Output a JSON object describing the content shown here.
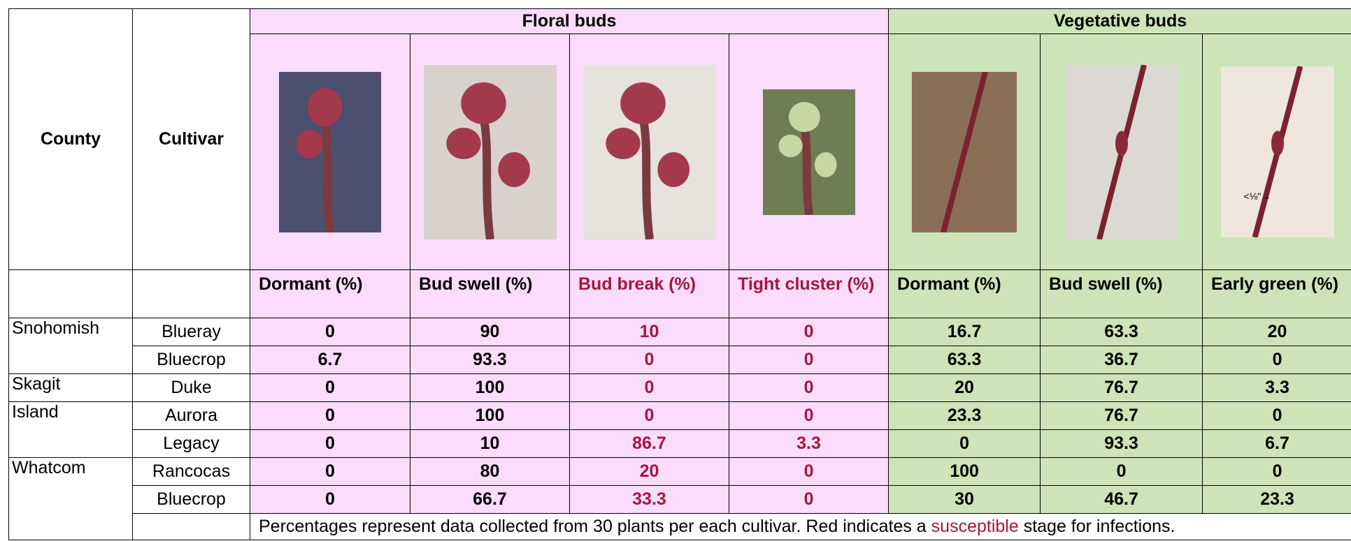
{
  "header": {
    "county": "County",
    "cultivar": "Cultivar",
    "floral": "Floral buds",
    "vegetative": "Vegetative buds"
  },
  "stage_labels": [
    "Dormant (%)",
    "Bud swell (%)",
    "Bud break (%)",
    "Tight cluster (%)",
    "Dormant (%)",
    "Bud swell (%)",
    "Early green (%)"
  ],
  "rows": [
    {
      "county": "Snohomish",
      "cultivar": "Blueray",
      "values": [
        0,
        90,
        10,
        0,
        16.7,
        63.3,
        20
      ]
    },
    {
      "cultivar": "Bluecrop",
      "values": [
        6.7,
        93.3,
        0,
        0,
        63.3,
        36.7,
        0
      ]
    },
    {
      "county": "Skagit",
      "cultivar": "Duke",
      "values": [
        0,
        100,
        0,
        0,
        20,
        76.7,
        3.3
      ]
    },
    {
      "county": "Island",
      "cultivar": "Aurora",
      "values": [
        0,
        100,
        0,
        0,
        23.3,
        76.7,
        0
      ]
    },
    {
      "cultivar": "Legacy",
      "values": [
        0,
        10,
        86.7,
        3.3,
        0,
        93.3,
        6.7
      ]
    },
    {
      "county": "Whatcom",
      "cultivar": "Rancocas",
      "values": [
        0,
        80,
        20,
        0,
        100,
        0,
        0
      ]
    },
    {
      "cultivar": "Bluecrop",
      "values": [
        0,
        66.7,
        33.3,
        0,
        30,
        46.7,
        23.3
      ]
    }
  ],
  "footnote": {
    "before": "Percentages represent data collected from 30 plants per each cultivar. Red indicates a ",
    "highlight": "susceptible",
    "after": " stage for infections."
  },
  "photo_annotation": "<⅛\"→"
}
